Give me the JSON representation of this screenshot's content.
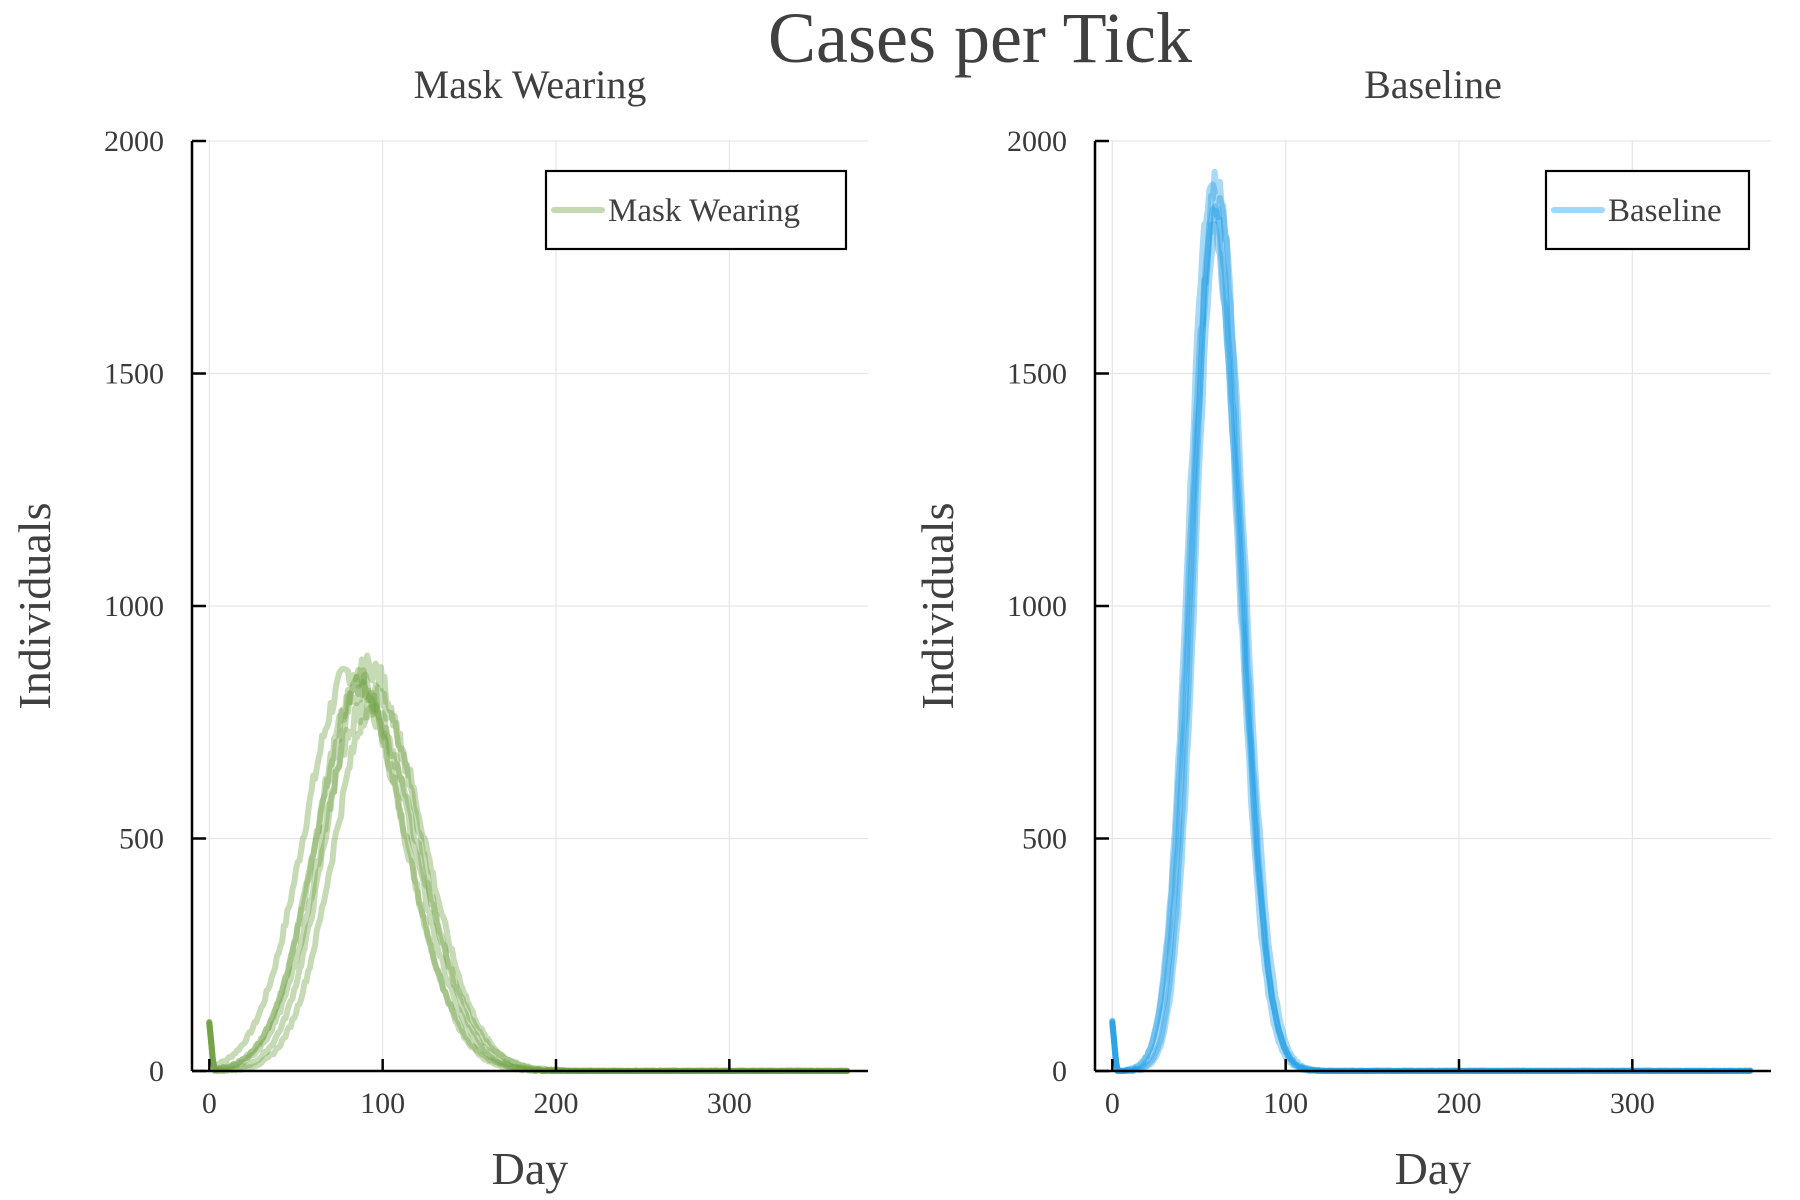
{
  "figure": {
    "title": "Cases per Tick"
  },
  "chart_data": [
    {
      "type": "line",
      "title": "Mask Wearing",
      "xlabel": "Day",
      "ylabel": "Individuals",
      "xlim": [
        -10,
        380
      ],
      "ylim": [
        0,
        2000
      ],
      "xticks": [
        0,
        100,
        200,
        300
      ],
      "yticks": [
        0,
        500,
        1000,
        1500,
        2000
      ],
      "grid": true,
      "legend_position": "top-right",
      "color": "#6b9f3e",
      "series": [
        {
          "name": "Mask Wearing",
          "peak_day": 82,
          "peak": 860,
          "sd_left": 27,
          "sd_right": 30
        },
        {
          "peak_day": 88,
          "peak": 835,
          "sd_left": 26,
          "sd_right": 29
        },
        {
          "peak_day": 92,
          "peak": 870,
          "sd_left": 24,
          "sd_right": 28
        },
        {
          "peak_day": 96,
          "peak": 800,
          "sd_left": 24,
          "sd_right": 29
        },
        {
          "peak_day": 86,
          "peak": 815,
          "sd_left": 25,
          "sd_right": 28
        },
        {
          "peak_day": 90,
          "peak": 780,
          "sd_left": 26,
          "sd_right": 31
        }
      ]
    },
    {
      "type": "line",
      "title": "Baseline",
      "xlabel": "Day",
      "ylabel": "Individuals",
      "xlim": [
        -10,
        380
      ],
      "ylim": [
        0,
        2000
      ],
      "xticks": [
        0,
        100,
        200,
        300
      ],
      "yticks": [
        0,
        500,
        1000,
        1500,
        2000
      ],
      "grid": true,
      "legend_position": "top-right",
      "color": "#1b9ae4",
      "series": [
        {
          "name": "Baseline",
          "peak_day": 57,
          "peak": 1900,
          "sd_left": 13,
          "sd_right": 15
        },
        {
          "peak_day": 59,
          "peak": 1840,
          "sd_left": 13,
          "sd_right": 15
        },
        {
          "peak_day": 60,
          "peak": 1920,
          "sd_left": 12.5,
          "sd_right": 14.5
        },
        {
          "peak_day": 61,
          "peak": 1860,
          "sd_left": 12.5,
          "sd_right": 15
        },
        {
          "peak_day": 58,
          "peak": 1800,
          "sd_left": 13.5,
          "sd_right": 15.5
        }
      ]
    }
  ]
}
